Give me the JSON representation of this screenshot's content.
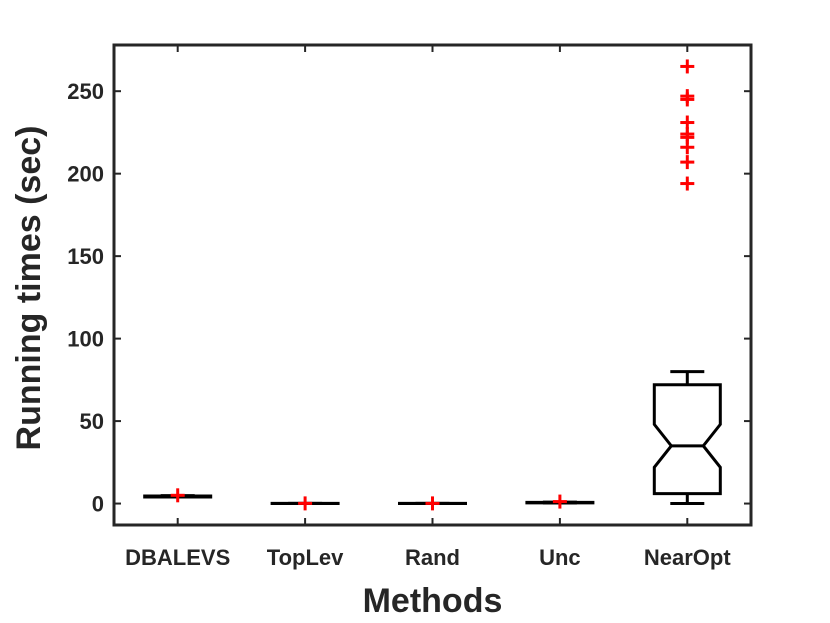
{
  "chart_data": {
    "type": "boxplot",
    "title": "",
    "xlabel": "Methods",
    "ylabel": "Running times (sec)",
    "ylim": [
      -13,
      278
    ],
    "yticks": [
      0,
      50,
      100,
      150,
      200,
      250
    ],
    "grid": false,
    "notched": true,
    "colors": {
      "box": "#000000",
      "outlier": "#ff0000",
      "axis": "#262626"
    },
    "categories": [
      "DBALEVS",
      "TopLev",
      "Rand",
      "Unc",
      "NearOpt"
    ],
    "boxes": [
      {
        "name": "DBALEVS",
        "min": 4.0,
        "q1": 4.0,
        "median": 4.3,
        "q3": 4.6,
        "max": 4.8,
        "outliers": [
          5.0
        ]
      },
      {
        "name": "TopLev",
        "min": 0.0,
        "q1": 0.0,
        "median": 0.0,
        "q3": 0.1,
        "max": 0.1,
        "outliers": [
          0.1
        ]
      },
      {
        "name": "Rand",
        "min": 0.0,
        "q1": 0.0,
        "median": 0.0,
        "q3": 0.1,
        "max": 0.1,
        "outliers": [
          0.1
        ]
      },
      {
        "name": "Unc",
        "min": 0.3,
        "q1": 0.4,
        "median": 0.5,
        "q3": 0.7,
        "max": 0.9,
        "outliers": [
          1.2
        ]
      },
      {
        "name": "NearOpt",
        "min": 0,
        "q1": 6,
        "median": 35,
        "q3": 72,
        "max": 80,
        "notch_low": 22,
        "notch_high": 48,
        "outliers": [
          194,
          207,
          216,
          222,
          224,
          231,
          245,
          247,
          265
        ]
      }
    ]
  }
}
